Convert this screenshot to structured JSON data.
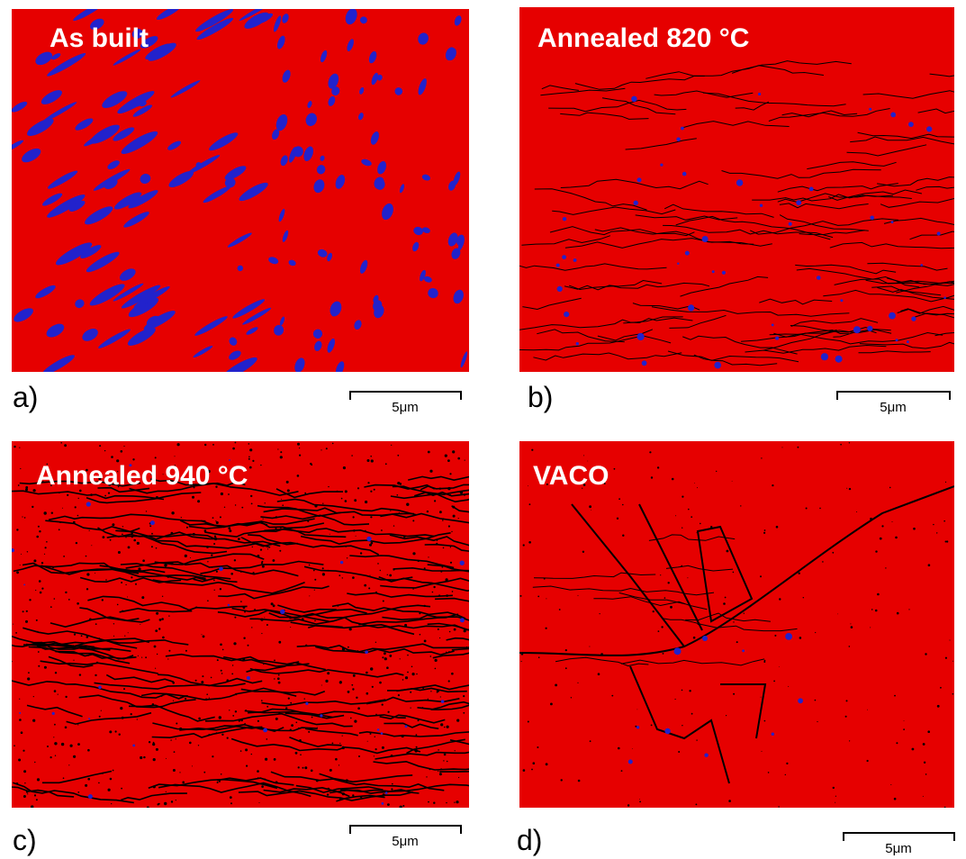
{
  "panels": [
    {
      "title": "As built",
      "label": "a)",
      "scale_bar": "5μm"
    },
    {
      "title": "Annealed 820 °C",
      "label": "b)",
      "scale_bar": "5μm"
    },
    {
      "title": "Annealed 940 °C",
      "label": "c)",
      "scale_bar": "5μm"
    },
    {
      "title": "VACO",
      "label": "d)",
      "scale_bar": "5μm"
    }
  ]
}
